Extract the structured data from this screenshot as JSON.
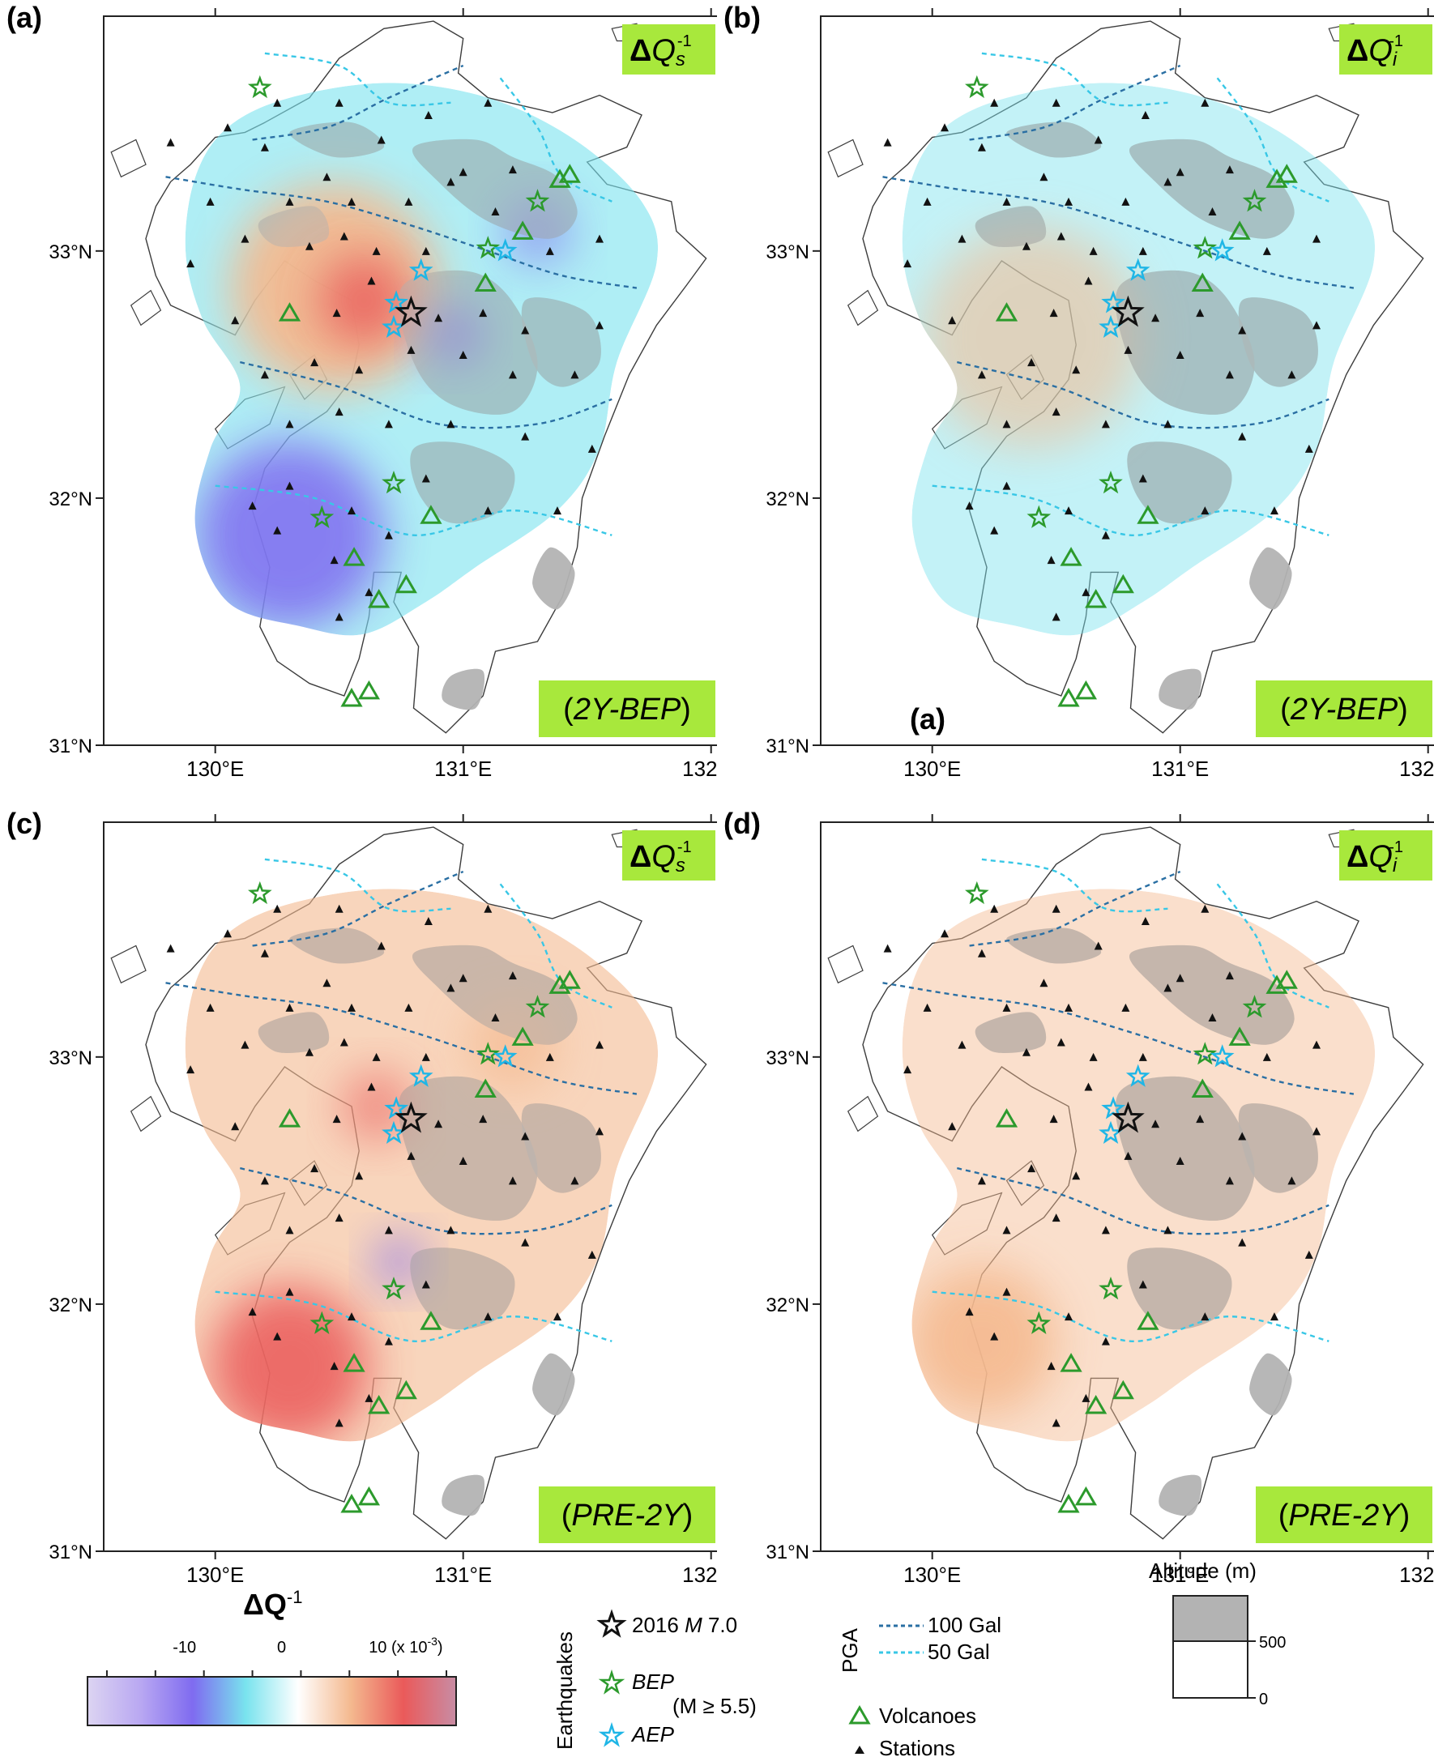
{
  "colors": {
    "coast": "#3c3c3c",
    "highland": "#b3b3b3",
    "frame": "#222222",
    "label_bg": "#a8e83c",
    "pga100": "#2a6fa3",
    "pga50": "#38c7e6",
    "volcano": "#2c9a2c",
    "bep_star": "#2c9a2c",
    "aep_star": "#1fb6e6",
    "mainshock": "#111111",
    "station": "#111111",
    "neg_strong": "#7f6bf0",
    "neg_weak": "#79e3ee",
    "pos_weak": "#f4b98f",
    "pos_strong": "#ea5a5a"
  },
  "panels": [
    {
      "id": "a",
      "letter": "(a)",
      "quantity": "ΔQ",
      "subscript": "s",
      "superscript": "-1",
      "period": "(2Y-BEP)",
      "period_italic": "2Y-BEP",
      "extra_letter": ""
    },
    {
      "id": "b",
      "letter": "(b)",
      "quantity": "ΔQ",
      "subscript": "i",
      "superscript": "-1",
      "period": "(2Y-BEP)",
      "period_italic": "2Y-BEP",
      "extra_letter": "(a)"
    },
    {
      "id": "c",
      "letter": "(c)",
      "quantity": "ΔQ",
      "subscript": "s",
      "superscript": "-1",
      "period": "(PRE-2Y)",
      "period_italic": "PRE-2Y",
      "extra_letter": ""
    },
    {
      "id": "d",
      "letter": "(d)",
      "quantity": "ΔQ",
      "subscript": "i",
      "superscript": "-1",
      "period": "(PRE-2Y)",
      "period_italic": "PRE-2Y",
      "extra_letter": ""
    }
  ],
  "axes": {
    "lon_ticks": [
      "130°E",
      "131°E",
      "132°E"
    ],
    "lat_ticks": [
      "31°N",
      "32°N",
      "33°N"
    ],
    "lon_range": [
      129.55,
      132.05
    ],
    "lat_range": [
      31.0,
      33.95
    ]
  },
  "mainshock": {
    "lon": 130.79,
    "lat": 32.75
  },
  "bep_events": [
    {
      "lon": 130.18,
      "lat": 33.66
    },
    {
      "lon": 131.1,
      "lat": 33.01
    },
    {
      "lon": 131.3,
      "lat": 33.2
    },
    {
      "lon": 130.72,
      "lat": 32.06
    },
    {
      "lon": 130.43,
      "lat": 31.92
    }
  ],
  "aep_events": [
    {
      "lon": 130.73,
      "lat": 32.79
    },
    {
      "lon": 130.83,
      "lat": 32.92
    },
    {
      "lon": 130.72,
      "lat": 32.69
    },
    {
      "lon": 131.17,
      "lat": 33.0
    }
  ],
  "volcanoes": [
    {
      "lon": 130.3,
      "lat": 32.75
    },
    {
      "lon": 131.09,
      "lat": 32.87
    },
    {
      "lon": 131.24,
      "lat": 33.08
    },
    {
      "lon": 131.39,
      "lat": 33.29
    },
    {
      "lon": 131.43,
      "lat": 33.31
    },
    {
      "lon": 130.87,
      "lat": 31.93
    },
    {
      "lon": 130.56,
      "lat": 31.76
    },
    {
      "lon": 130.66,
      "lat": 31.59
    },
    {
      "lon": 130.77,
      "lat": 31.65
    },
    {
      "lon": 130.55,
      "lat": 31.19
    },
    {
      "lon": 130.62,
      "lat": 31.22
    }
  ],
  "stations": [
    [
      129.82,
      33.44
    ],
    [
      130.05,
      33.5
    ],
    [
      130.25,
      33.6
    ],
    [
      130.5,
      33.6
    ],
    [
      130.86,
      33.55
    ],
    [
      131.1,
      33.6
    ],
    [
      130.2,
      33.42
    ],
    [
      130.45,
      33.3
    ],
    [
      130.67,
      33.45
    ],
    [
      131.0,
      33.32
    ],
    [
      131.2,
      33.33
    ],
    [
      130.95,
      33.28
    ],
    [
      129.98,
      33.2
    ],
    [
      130.3,
      33.2
    ],
    [
      130.55,
      33.2
    ],
    [
      130.78,
      33.2
    ],
    [
      131.13,
      33.16
    ],
    [
      129.9,
      32.95
    ],
    [
      130.12,
      33.05
    ],
    [
      130.38,
      33.02
    ],
    [
      130.52,
      33.06
    ],
    [
      130.65,
      33.0
    ],
    [
      130.85,
      33.0
    ],
    [
      131.35,
      33.0
    ],
    [
      131.55,
      33.05
    ],
    [
      130.08,
      32.72
    ],
    [
      130.49,
      32.75
    ],
    [
      130.63,
      32.88
    ],
    [
      130.9,
      32.73
    ],
    [
      131.08,
      32.75
    ],
    [
      131.25,
      32.68
    ],
    [
      131.55,
      32.7
    ],
    [
      130.2,
      32.5
    ],
    [
      130.4,
      32.55
    ],
    [
      130.58,
      32.52
    ],
    [
      130.79,
      32.6
    ],
    [
      131.0,
      32.58
    ],
    [
      131.2,
      32.5
    ],
    [
      131.45,
      32.5
    ],
    [
      130.3,
      32.3
    ],
    [
      130.5,
      32.35
    ],
    [
      130.7,
      32.3
    ],
    [
      130.95,
      32.3
    ],
    [
      131.25,
      32.25
    ],
    [
      131.52,
      32.2
    ],
    [
      130.3,
      32.05
    ],
    [
      130.55,
      31.95
    ],
    [
      130.85,
      32.08
    ],
    [
      131.1,
      31.95
    ],
    [
      131.38,
      31.95
    ],
    [
      130.48,
      31.75
    ],
    [
      130.7,
      31.85
    ],
    [
      130.5,
      31.52
    ],
    [
      130.62,
      31.62
    ],
    [
      130.25,
      31.87
    ],
    [
      130.15,
      31.97
    ]
  ],
  "anomalies": {
    "a": [
      {
        "lon": 130.48,
        "lat": 32.85,
        "r": 0.42,
        "color": "pos_weak",
        "op": 0.95
      },
      {
        "lon": 130.6,
        "lat": 32.8,
        "r": 0.18,
        "color": "pos_strong",
        "op": 0.8
      },
      {
        "lon": 130.3,
        "lat": 31.85,
        "r": 0.38,
        "color": "neg_strong",
        "op": 0.85
      },
      {
        "lon": 130.96,
        "lat": 32.66,
        "r": 0.12,
        "color": "neg_strong",
        "op": 0.8
      },
      {
        "lon": 131.3,
        "lat": 33.08,
        "r": 0.14,
        "color": "neg_strong",
        "op": 0.55
      }
    ],
    "b": [
      {
        "lon": 130.4,
        "lat": 32.65,
        "r": 0.45,
        "color": "pos_weak",
        "op": 0.55
      }
    ],
    "c": [
      {
        "lon": 130.3,
        "lat": 31.75,
        "r": 0.32,
        "color": "pos_strong",
        "op": 0.85
      },
      {
        "lon": 130.65,
        "lat": 32.8,
        "r": 0.14,
        "color": "pos_strong",
        "op": 0.6
      },
      {
        "lon": 130.74,
        "lat": 32.17,
        "r": 0.1,
        "color": "neg_strong",
        "op": 0.7
      },
      {
        "lon": 131.2,
        "lat": 33.05,
        "r": 0.18,
        "color": "pos_weak",
        "op": 0.7
      }
    ],
    "d": [
      {
        "lon": 130.2,
        "lat": 31.85,
        "r": 0.3,
        "color": "pos_weak",
        "op": 0.9
      }
    ]
  },
  "colorbar": {
    "title": "ΔQ",
    "title_sup": "-1",
    "tick_labels": [
      "-10",
      "0",
      "10 (x 10"
    ],
    "tick_values": [
      -10,
      0,
      10
    ],
    "range": [
      -20,
      18
    ],
    "unit_sup": "-3",
    "stops": [
      "#dcd4f2",
      "#b9a8f2",
      "#7f6bf0",
      "#79e3ee",
      "#ffffff",
      "#f4b98f",
      "#ea5a5a",
      "#c88ca4"
    ]
  },
  "legend_earthquakes": {
    "group_title": "Earthquakes",
    "mainshock_label_prefix": "2016 ",
    "mainshock_label_m": "M",
    "mainshock_label_mag": " 7.0",
    "bep_label": "BEP",
    "bep_condition": "(M ≥ 5.5)",
    "aep_label": "AEP"
  },
  "legend_pga": {
    "group_title": "PGA",
    "line100_label": "100 Gal",
    "line50_label": "50  Gal",
    "volcano_label": "Volcanoes",
    "station_label": "Stations"
  },
  "legend_altitude": {
    "title": "Altitude (m)",
    "label_high": "500",
    "label_low": "0"
  }
}
